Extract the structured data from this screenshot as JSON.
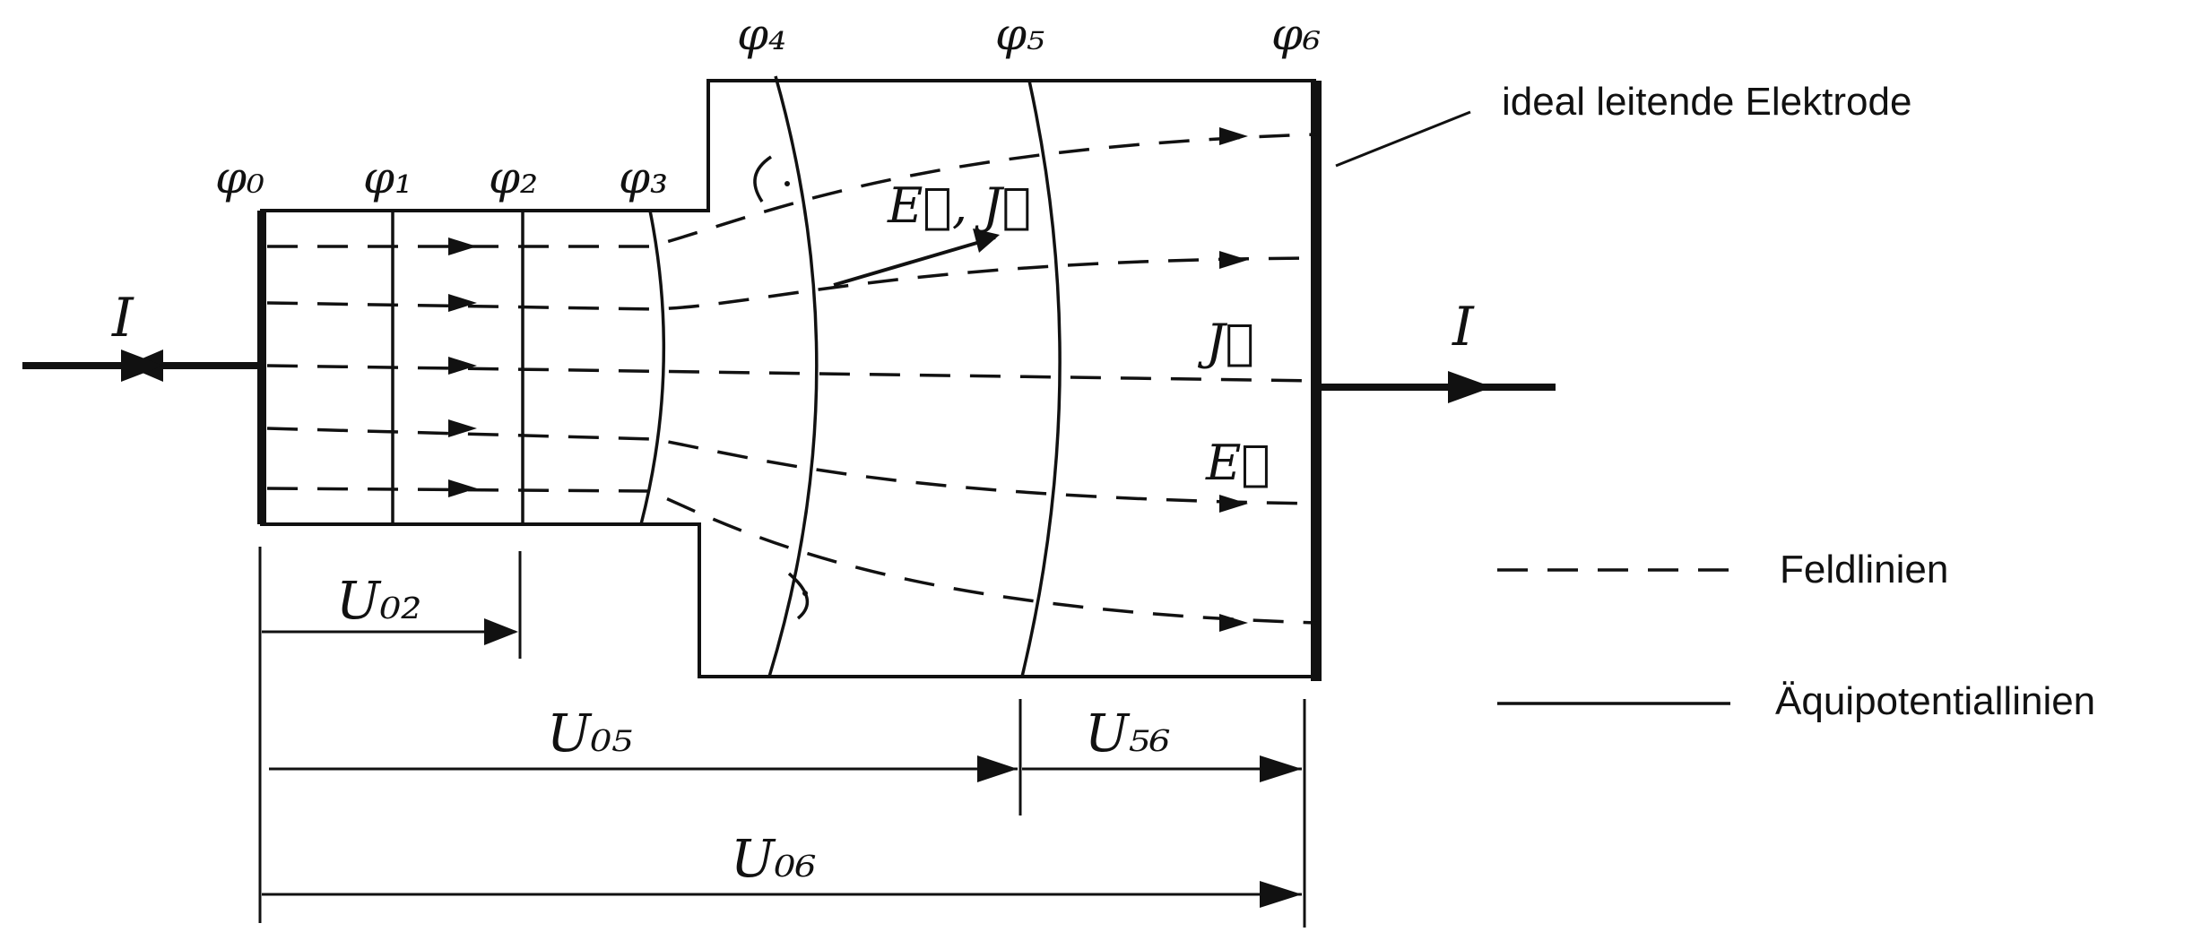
{
  "potentials": [
    {
      "id": "phi0",
      "text": "φ₀"
    },
    {
      "id": "phi1",
      "text": "φ₁"
    },
    {
      "id": "phi2",
      "text": "φ₂"
    },
    {
      "id": "phi3",
      "text": "φ₃"
    },
    {
      "id": "phi4",
      "text": "φ₄"
    },
    {
      "id": "phi5",
      "text": "φ₅"
    },
    {
      "id": "phi6",
      "text": "φ₆"
    }
  ],
  "current_in": "I",
  "current_out": "I",
  "field_label_ej": "E⃗, J⃗",
  "field_label_j": "J⃗",
  "field_label_e": "E⃗",
  "electrode_label": "ideal leitende Elektrode",
  "legend": {
    "field_lines": "Feldlinien",
    "equipotential_lines": "Äquipotentiallinien"
  },
  "voltages": {
    "u02": "U₀₂",
    "u05": "U₀₅",
    "u56": "U₅₆",
    "u06": "U₀₆"
  }
}
